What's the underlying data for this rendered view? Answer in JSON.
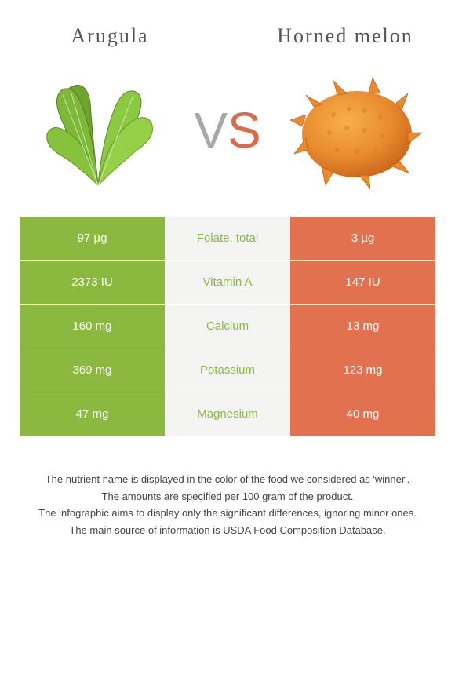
{
  "header": {
    "left_title": "Arugula",
    "right_title": "Horned melon",
    "vs_v": "V",
    "vs_s": "S"
  },
  "colors": {
    "left_food": "#8bb93f",
    "right_food": "#e2724f",
    "mid_bg": "#f4f4f2",
    "text_grey": "#555555"
  },
  "table": {
    "rows": [
      {
        "left": "97 µg",
        "label": "Folate, total",
        "right": "3 µg",
        "winner": "left"
      },
      {
        "left": "2373 IU",
        "label": "Vitamin A",
        "right": "147 IU",
        "winner": "left"
      },
      {
        "left": "160 mg",
        "label": "Calcium",
        "right": "13 mg",
        "winner": "left"
      },
      {
        "left": "369 mg",
        "label": "Potassium",
        "right": "123 mg",
        "winner": "left"
      },
      {
        "left": "47 mg",
        "label": "Magnesium",
        "right": "40 mg",
        "winner": "left"
      }
    ]
  },
  "footnotes": [
    "The nutrient name is displayed in the color of the food we considered as 'winner'.",
    "The amounts are specified per 100 gram of the product.",
    "The infographic aims to display only the significant differences, ignoring minor ones.",
    "The main source of information is USDA Food Composition Database."
  ],
  "images": {
    "left_alt": "arugula-leaves",
    "right_alt": "horned-melon-fruit"
  }
}
